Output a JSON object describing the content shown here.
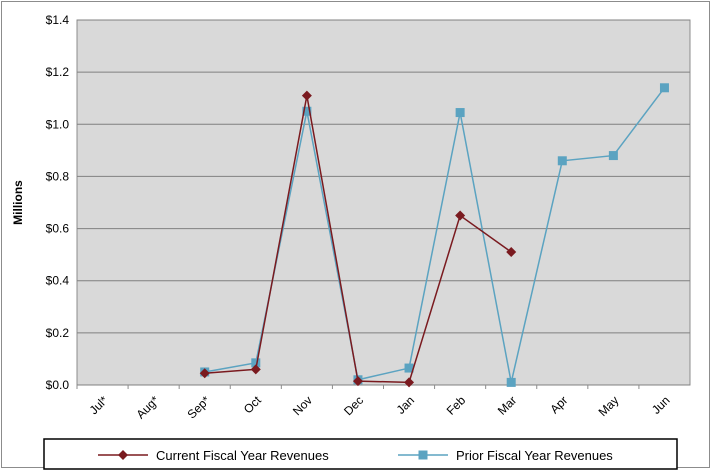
{
  "chart_data": {
    "type": "line",
    "title": "",
    "xlabel": "",
    "ylabel": "Millions",
    "ylim": [
      0,
      1.4
    ],
    "y_ticks": [
      "$0.0",
      "$0.2",
      "$0.4",
      "$0.6",
      "$0.8",
      "$1.0",
      "$1.2",
      "$1.4"
    ],
    "categories": [
      "Jul*",
      "Aug*",
      "Sep*",
      "Oct",
      "Nov",
      "Dec",
      "Jan",
      "Feb",
      "Mar",
      "Apr",
      "May",
      "Jun"
    ],
    "grid": true,
    "legend_position": "bottom",
    "series": [
      {
        "name": "Current Fiscal Year Revenues",
        "color": "#7a1a1f",
        "marker": "diamond",
        "values": [
          null,
          null,
          0.045,
          0.06,
          1.11,
          0.015,
          0.01,
          0.65,
          0.51,
          null,
          null,
          null
        ]
      },
      {
        "name": "Prior Fiscal Year Revenues",
        "color": "#5ba3c1",
        "marker": "square",
        "values": [
          null,
          null,
          0.05,
          0.085,
          1.05,
          0.02,
          0.065,
          1.045,
          0.01,
          0.86,
          0.88,
          1.14
        ]
      }
    ]
  }
}
